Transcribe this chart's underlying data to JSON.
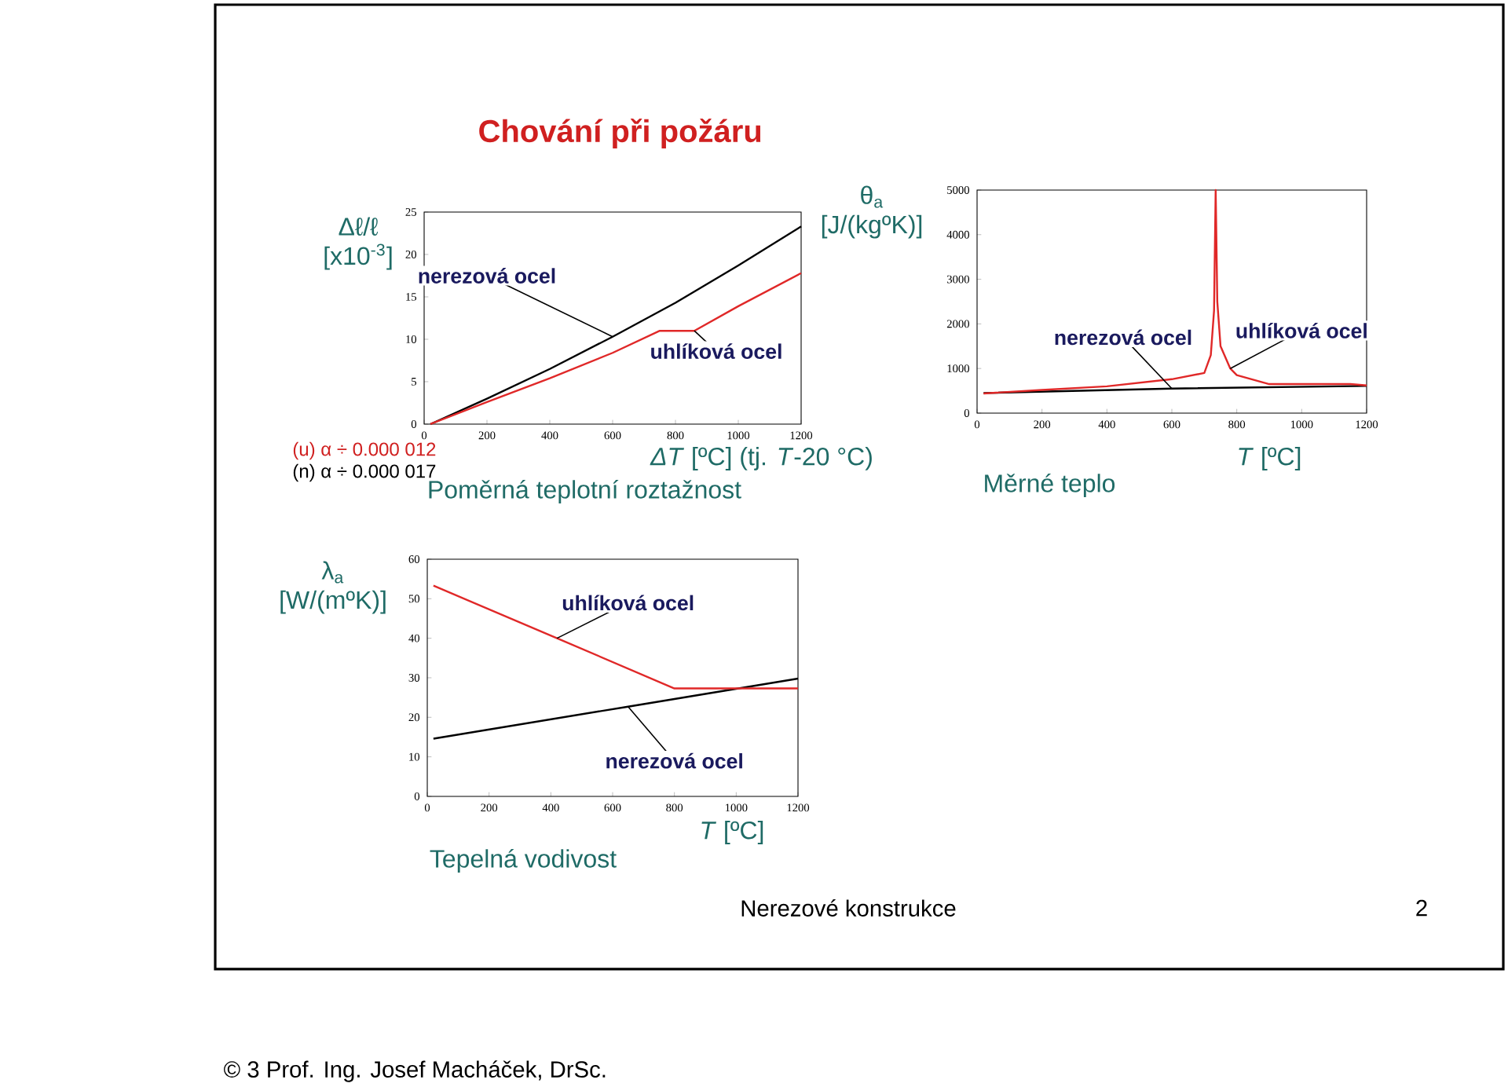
{
  "chart_data": [
    {
      "type": "line",
      "title": "Poměrná teplotní roztažnost",
      "xlabel": "*ΔT* [ºC]  (tj. *T*-20 °C)",
      "ylabel": "Δℓ/ℓ [x10$^{-3}$]",
      "xlim": [
        0,
        1200
      ],
      "ylim": [
        0,
        25
      ],
      "xticks": [
        0,
        200,
        400,
        600,
        800,
        1000,
        1200
      ],
      "yticks": [
        0,
        5,
        10,
        15,
        20,
        25
      ],
      "series": [
        {
          "name": "nerezová ocel",
          "color": "#000000",
          "x": [
            20,
            200,
            400,
            600,
            800,
            1000,
            1200
          ],
          "values": [
            0,
            3.0,
            6.5,
            10.3,
            14.3,
            18.7,
            23.3
          ]
        },
        {
          "name": "uhlíková ocel",
          "color": "#e02828",
          "x": [
            20,
            200,
            400,
            600,
            750,
            860,
            1000,
            1200
          ],
          "values": [
            0,
            2.6,
            5.4,
            8.4,
            11,
            11,
            13.9,
            17.8
          ]
        }
      ],
      "annotations": [
        "(u) α ÷ 0.000 012",
        "(n) α ÷ 0.000 017",
        "Chování při požáru",
        "Nerezové konstrukce",
        "2",
        "© 3   Prof. Ing. Josef Macháček, DrSc."
      ]
    },
    {
      "type": "line",
      "title": "Měrné teplo",
      "xlabel": "*T* [ºC]",
      "ylabel": "θ$_{a}$ [J/(kgºK)]",
      "xlim": [
        0,
        1200
      ],
      "ylim": [
        0,
        5000
      ],
      "xticks": [
        0,
        200,
        400,
        600,
        800,
        1000,
        1200
      ],
      "yticks": [
        0,
        1000,
        2000,
        3000,
        4000,
        5000
      ],
      "series": [
        {
          "name": "nerezová ocel",
          "color": "#000000",
          "x": [
            20,
            600,
            1200
          ],
          "values": [
            450,
            550,
            610
          ]
        },
        {
          "name": "uhlíková ocel",
          "color": "#e02828",
          "x": [
            20,
            200,
            400,
            600,
            700,
            720,
            730,
            735,
            740,
            750,
            780,
            800,
            900,
            1000,
            1150,
            1200
          ],
          "values": [
            440,
            520,
            600,
            760,
            900,
            1300,
            2300,
            5000,
            2500,
            1500,
            1000,
            850,
            650,
            650,
            650,
            620
          ]
        }
      ]
    },
    {
      "type": "line",
      "title": "Tepelná vodivost",
      "xlabel": "*T* [ºC]",
      "ylabel": "λ$_{a}$ [W/(mºK)]",
      "xlim": [
        0,
        1200
      ],
      "ylim": [
        0,
        60
      ],
      "xticks": [
        0,
        200,
        400,
        600,
        800,
        1000,
        1200
      ],
      "yticks": [
        0,
        10,
        20,
        30,
        40,
        50,
        60
      ],
      "series": [
        {
          "name": "nerezová ocel",
          "color": "#000000",
          "x": [
            20,
            650,
            1200
          ],
          "values": [
            14.6,
            22.7,
            29.8
          ]
        },
        {
          "name": "uhlíková ocel",
          "color": "#e02828",
          "x": [
            20,
            420,
            800,
            1200
          ],
          "values": [
            53.3,
            40,
            27.3,
            27.3
          ]
        }
      ]
    }
  ]
}
